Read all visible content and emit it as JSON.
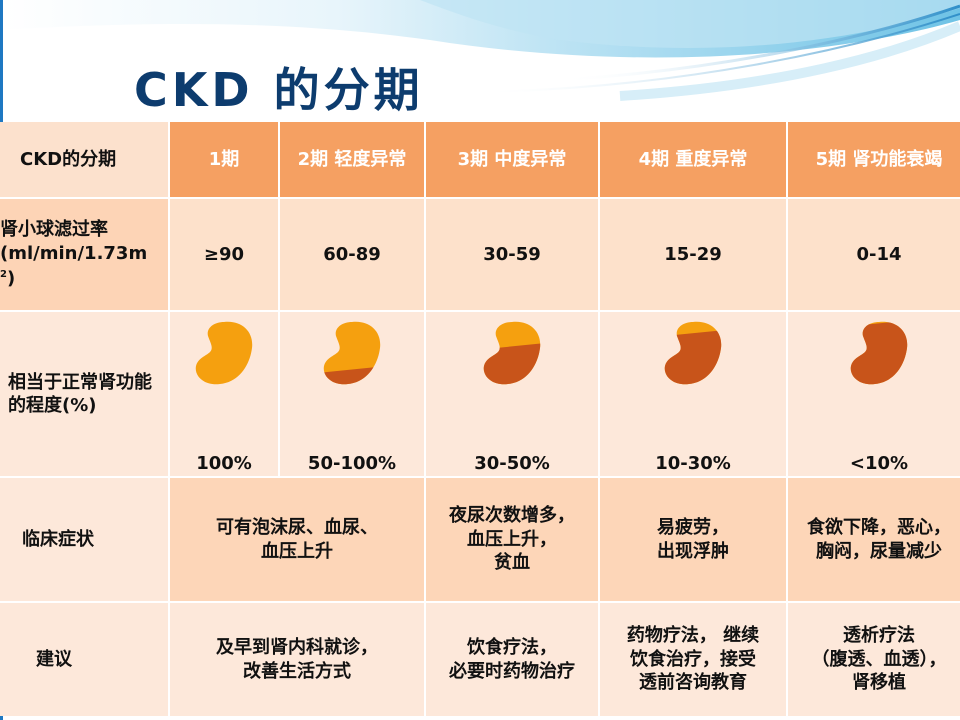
{
  "title": "CKD 的分期",
  "colors": {
    "header_orange": "#f5a062",
    "cell_light": "#fde8da",
    "kidney_light": "#f5a00f",
    "kidney_dark": "#c8541a",
    "title_navy": "#0d3c6e"
  },
  "table": {
    "header": {
      "label": "CKD的分期",
      "stages": [
        "1期",
        "2期  轻度异常",
        "3期  中度异常",
        "4期  重度异常",
        "5期  肾功能衰竭"
      ]
    },
    "gfr": {
      "label_line1": "肾小球滤过率",
      "label_line2": "(ml/min/1.73m",
      "label_sup": "2",
      "label_line3": ")",
      "values": [
        "≥90",
        "60-89",
        "30-59",
        "15-29",
        "0-14"
      ]
    },
    "function": {
      "label": "相当于正常肾功能的程度(%)",
      "values": [
        "100%",
        "50-100%",
        "30-50%",
        "10-30%",
        "<10%"
      ],
      "kidney_fill_fraction": [
        1.0,
        0.75,
        0.4,
        0.2,
        0.05
      ]
    },
    "symptoms": {
      "label": "临床症状",
      "stage12": "可有泡沫尿、血尿、\n血压上升",
      "stage3": "夜尿次数增多，\n血压上升，\n贫血",
      "stage4": "易疲劳，\n出现浮肿",
      "stage5": "食欲下降，恶心，\n胸闷，尿量减少"
    },
    "advice": {
      "label": "建议",
      "stage12": "及早到肾内科就诊，\n改善生活方式",
      "stage3": "饮食疗法，\n必要时药物治疗",
      "stage4": "药物疗法，  继续\n饮食治疗，接受\n透前咨询教育",
      "stage5": "透析疗法\n（腹透、血透），\n肾移植"
    }
  }
}
